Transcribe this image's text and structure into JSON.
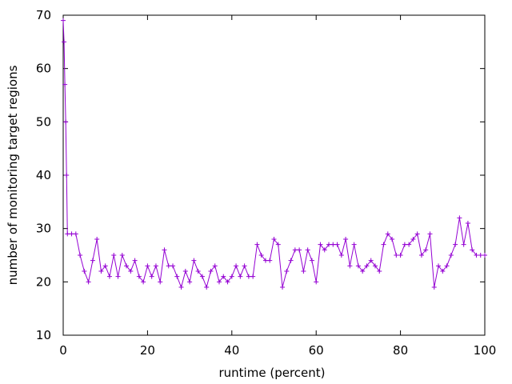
{
  "chart_data": {
    "type": "line",
    "xlabel": "runtime (percent)",
    "ylabel": "number of monitoring target regions",
    "xlim": [
      0,
      100
    ],
    "ylim": [
      10,
      70
    ],
    "xticks": [
      0,
      20,
      40,
      60,
      80,
      100
    ],
    "yticks": [
      10,
      20,
      30,
      40,
      50,
      60,
      70
    ],
    "grid": false,
    "legend": "none",
    "marker": "plus",
    "series": [
      {
        "color": "#9400d3",
        "x": [
          0,
          0.2,
          0.4,
          0.6,
          0.8,
          1,
          2,
          3,
          4,
          5,
          6,
          7,
          8,
          9,
          10,
          11,
          12,
          13,
          14,
          15,
          16,
          17,
          18,
          19,
          20,
          21,
          22,
          23,
          24,
          25,
          26,
          27,
          28,
          29,
          30,
          31,
          32,
          33,
          34,
          35,
          36,
          37,
          38,
          39,
          40,
          41,
          42,
          43,
          44,
          45,
          46,
          47,
          48,
          49,
          50,
          51,
          52,
          53,
          54,
          55,
          56,
          57,
          58,
          59,
          60,
          61,
          62,
          63,
          64,
          65,
          66,
          67,
          68,
          69,
          70,
          71,
          72,
          73,
          74,
          75,
          76,
          77,
          78,
          79,
          80,
          81,
          82,
          83,
          84,
          85,
          86,
          87,
          88,
          89,
          90,
          91,
          92,
          93,
          94,
          95,
          96,
          97,
          98,
          99,
          100
        ],
        "y": [
          69,
          65,
          57,
          50,
          40,
          29,
          29,
          29,
          25,
          22,
          20,
          24,
          28,
          22,
          23,
          21,
          25,
          21,
          25,
          23,
          22,
          24,
          21,
          20,
          23,
          21,
          23,
          20,
          26,
          23,
          23,
          21,
          19,
          22,
          20,
          24,
          22,
          21,
          19,
          22,
          23,
          20,
          21,
          20,
          21,
          23,
          21,
          23,
          21,
          21,
          27,
          25,
          24,
          24,
          28,
          27,
          19,
          22,
          24,
          26,
          26,
          22,
          26,
          24,
          20,
          27,
          26,
          27,
          27,
          27,
          25,
          28,
          23,
          27,
          23,
          22,
          23,
          24,
          23,
          22,
          27,
          29,
          28,
          25,
          25,
          27,
          27,
          28,
          29,
          25,
          26,
          29,
          19,
          23,
          22,
          23,
          25,
          27,
          32,
          27,
          31,
          26,
          25,
          25,
          25
        ]
      }
    ]
  }
}
